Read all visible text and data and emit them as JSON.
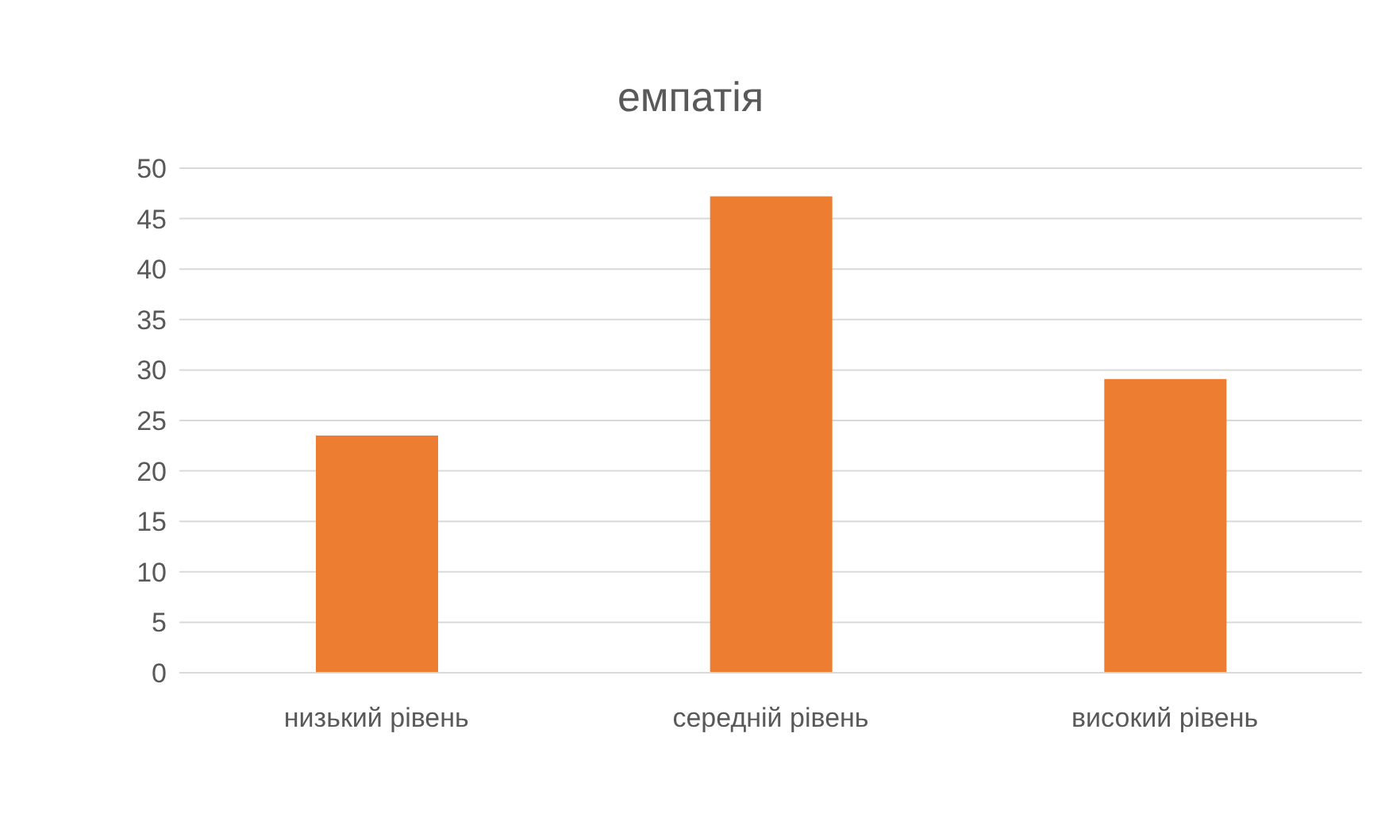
{
  "chart_data": {
    "type": "bar",
    "title": "емпатія",
    "categories": [
      "низький рівень",
      "середній рівень",
      "високий рівень"
    ],
    "values": [
      23.5,
      47.2,
      29.1
    ],
    "color": "#ed7d31",
    "ylim": [
      0,
      50
    ],
    "yticks": [
      0,
      5,
      10,
      15,
      20,
      25,
      30,
      35,
      40,
      45,
      50
    ],
    "grid": "y"
  }
}
